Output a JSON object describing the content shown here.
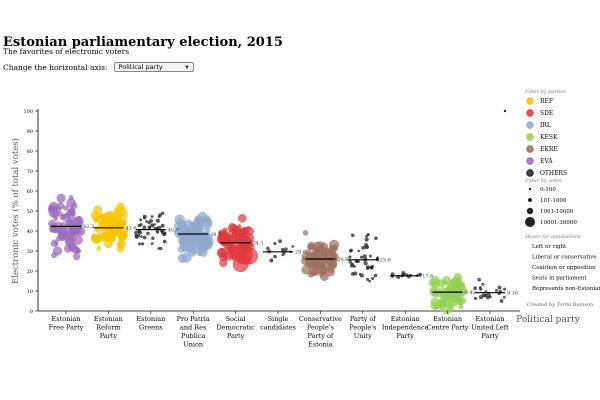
{
  "header": {
    "title": "Estonian parliamentary election, 2015",
    "subtitle": "The favorites of electronic voters",
    "axis_label": "Change the horizontal axis:",
    "axis_selected": "Political party",
    "chevron_icon": "chevron-down-icon"
  },
  "legend": {
    "parties_title": "Filter by parties",
    "parties": [
      {
        "name": "REF",
        "color": "#f5c400"
      },
      {
        "name": "SDE",
        "color": "#e0393e"
      },
      {
        "name": "IRL",
        "color": "#8fa7cf"
      },
      {
        "name": "KESK",
        "color": "#94d157"
      },
      {
        "name": "EKRE",
        "color": "#a07060"
      },
      {
        "name": "EVA",
        "color": "#9b6bbf"
      },
      {
        "name": "OTHERS",
        "color": "#222222"
      }
    ],
    "votes_title": "Filter by votes",
    "votes": [
      "0-100",
      "101-1000",
      "1001-10000",
      "10001-30000"
    ],
    "hover_title": "Hover for annotations",
    "hover_items": [
      "Left or right",
      "Liberal or conservative",
      "Coalition or opposition",
      "Seats in parliament",
      "Represents non-Estonians"
    ],
    "credit": "Created by Tormi Reinson"
  },
  "chart_data": {
    "type": "scatter",
    "ylabel": "Electronic votes (% of total votes)",
    "xlabel": "Political party",
    "ylim": [
      0,
      100
    ],
    "yticks": [
      0,
      10,
      20,
      30,
      40,
      50,
      60,
      70,
      80,
      90,
      100
    ],
    "categories": [
      {
        "label": "Estonian\nFree Party",
        "color": "#9b6bbf",
        "mean": 42.3,
        "mean_label": "42.3",
        "spread": [
          10,
          74
        ]
      },
      {
        "label": "Estonian\nReform\nParty",
        "color": "#f5c400",
        "mean": 41.6,
        "mean_label": "41.6",
        "spread": [
          20,
          62
        ]
      },
      {
        "label": "Estonian\nGreens",
        "color": "#222222",
        "mean": 40.7,
        "mean_label": "40.7",
        "spread": [
          24,
          62
        ]
      },
      {
        "label": "Pro Patria\nand Res\nPublica\nUnion",
        "color": "#8fa7cf",
        "mean": 38.5,
        "mean_label": "38.5",
        "spread": [
          20,
          64
        ]
      },
      {
        "label": "Social\nDemocratic\nParty",
        "color": "#e0393e",
        "mean": 34.1,
        "mean_label": "34.1",
        "spread": [
          18,
          63
        ]
      },
      {
        "label": "Single\ncandidates",
        "color": "#222222",
        "mean": 29.6,
        "mean_label": "29.6",
        "spread": [
          18,
          42
        ]
      },
      {
        "label": "Conservative\nPeople's\nParty of\nEstonia",
        "color": "#a07060",
        "mean": 26.0,
        "mean_label": "26.0",
        "spread": [
          9,
          50
        ]
      },
      {
        "label": "Party of\nPeople's\nUnity",
        "color": "#222222",
        "mean": 25.6,
        "mean_label": "25.6",
        "spread": [
          5,
          54
        ]
      },
      {
        "label": "Estonian\nIndependence\nParty",
        "color": "#222222",
        "mean": 17.6,
        "mean_label": "17.6",
        "spread": [
          13,
          21
        ]
      },
      {
        "label": "Estonian\nCentre Party",
        "color": "#94d157",
        "mean": 9.43,
        "mean_label": "9.43",
        "spread": [
          2,
          37
        ]
      },
      {
        "label": "Estonian\nUnited Left\nParty",
        "color": "#222222",
        "mean": 9.16,
        "mean_label": "9.16",
        "spread": [
          3,
          24
        ]
      }
    ],
    "outlier": {
      "category": 10,
      "value": 100
    }
  }
}
